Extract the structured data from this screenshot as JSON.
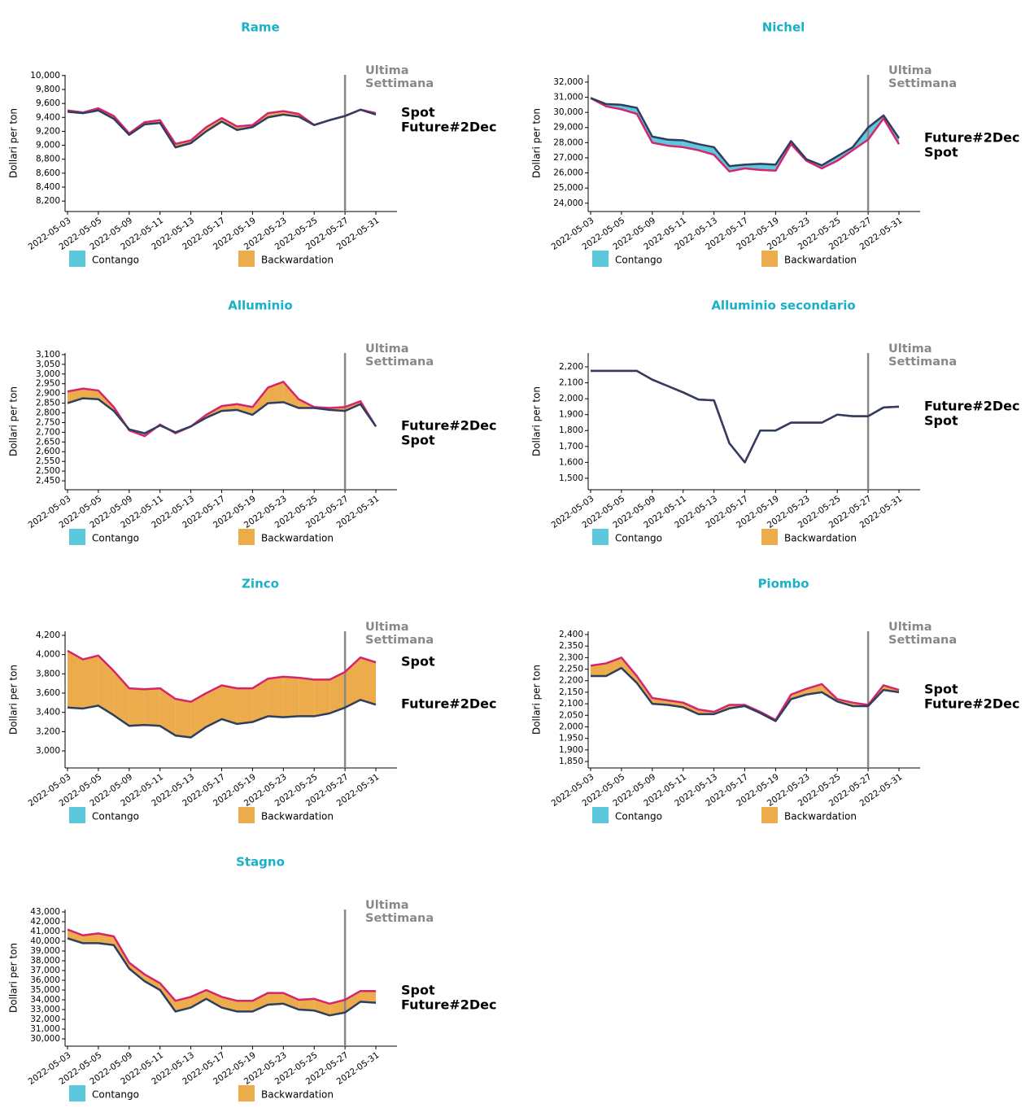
{
  "chart_data": [
    {
      "type": "line",
      "title": "Rame",
      "y_label": "Dollari per ton",
      "categories": [
        "2022-05-03",
        null,
        "2022-05-05",
        null,
        "2022-05-09",
        null,
        "2022-05-11",
        null,
        "2022-05-13",
        null,
        "2022-05-17",
        null,
        "2022-05-19",
        null,
        "2022-05-23",
        null,
        "2022-05-25",
        null,
        "2022-05-27",
        null,
        "2022-05-31"
      ],
      "series": [
        {
          "name": "Spot",
          "color": "#d6246e",
          "values": [
            9500,
            9470,
            9530,
            9420,
            9170,
            9330,
            9360,
            9020,
            9070,
            9260,
            9390,
            9270,
            9290,
            9460,
            9490,
            9450,
            9290,
            9360,
            9420,
            9510,
            9460
          ]
        },
        {
          "name": "Future#2Dec",
          "color": "#2d3e5e",
          "values": [
            9480,
            9460,
            9500,
            9380,
            9150,
            9300,
            9320,
            8970,
            9030,
            9200,
            9340,
            9220,
            9260,
            9400,
            9440,
            9410,
            9290,
            9360,
            9420,
            9510,
            9440
          ]
        }
      ],
      "legend": [
        {
          "name": "Contango",
          "color": "#5bc8dc"
        },
        {
          "name": "Backwardation",
          "color": "#ecac4c"
        }
      ],
      "vline_at": "2022-05-27",
      "annotation": [
        "Ultima",
        "Settimana"
      ],
      "ylim": [
        8050,
        10010
      ],
      "yticks": [
        {
          "value": 8200,
          "label": "8,200"
        },
        {
          "value": 8400,
          "label": "8,400"
        },
        {
          "value": 8600,
          "label": "8,600"
        },
        {
          "value": 8800,
          "label": "8,800"
        },
        {
          "value": 9000,
          "label": "9,000"
        },
        {
          "value": 9200,
          "label": "9,200"
        },
        {
          "value": 9400,
          "label": "9,400"
        },
        {
          "value": 9600,
          "label": "9,600"
        },
        {
          "value": 9800,
          "label": "9,800"
        },
        {
          "value": 10000,
          "label": "10,000"
        }
      ]
    },
    {
      "type": "line",
      "title": "Nichel",
      "y_label": "Dollari per ton",
      "categories": [
        "2022-05-03",
        null,
        "2022-05-05",
        null,
        "2022-05-09",
        null,
        "2022-05-11",
        null,
        "2022-05-13",
        null,
        "2022-05-17",
        null,
        "2022-05-19",
        null,
        "2022-05-23",
        null,
        "2022-05-25",
        null,
        "2022-05-27",
        null,
        "2022-05-31"
      ],
      "series": [
        {
          "name": "Spot",
          "color": "#d6246e",
          "values": [
            30950,
            30400,
            30200,
            29900,
            28000,
            27800,
            27700,
            27500,
            27200,
            26100,
            26300,
            26200,
            26150,
            27900,
            26800,
            26300,
            26800,
            27500,
            28200,
            29600,
            27900
          ]
        },
        {
          "name": "Future#2Dec",
          "color": "#2d3e5e",
          "values": [
            30950,
            30550,
            30500,
            30300,
            28400,
            28200,
            28150,
            27900,
            27700,
            26450,
            26550,
            26600,
            26550,
            28100,
            26900,
            26500,
            27100,
            27700,
            29000,
            29800,
            28300
          ]
        }
      ],
      "legend": [
        {
          "name": "Contango",
          "color": "#5bc8dc"
        },
        {
          "name": "Backwardation",
          "color": "#ecac4c"
        }
      ],
      "vline_at": "2022-05-27",
      "annotation": [
        "Ultima",
        "Settimana"
      ],
      "ylim": [
        23450,
        32480
      ],
      "yticks": [
        {
          "value": 24000,
          "label": "24,000"
        },
        {
          "value": 25000,
          "label": "25,000"
        },
        {
          "value": 26000,
          "label": "26,000"
        },
        {
          "value": 27000,
          "label": "27,000"
        },
        {
          "value": 28000,
          "label": "28,000"
        },
        {
          "value": 29000,
          "label": "29,000"
        },
        {
          "value": 30000,
          "label": "30,000"
        },
        {
          "value": 31000,
          "label": "31,000"
        },
        {
          "value": 32000,
          "label": "32,000"
        }
      ]
    },
    {
      "type": "line",
      "title": "Alluminio",
      "y_label": "Dollari per ton",
      "categories": [
        "2022-05-03",
        null,
        "2022-05-05",
        null,
        "2022-05-09",
        null,
        "2022-05-11",
        null,
        "2022-05-13",
        null,
        "2022-05-17",
        null,
        "2022-05-19",
        null,
        "2022-05-23",
        null,
        "2022-05-25",
        null,
        "2022-05-27",
        null,
        "2022-05-31"
      ],
      "series": [
        {
          "name": "Spot",
          "color": "#d6246e",
          "values": [
            2910,
            2925,
            2915,
            2830,
            2710,
            2680,
            2740,
            2695,
            2730,
            2790,
            2835,
            2845,
            2830,
            2930,
            2960,
            2870,
            2830,
            2825,
            2830,
            2860,
            2730
          ]
        },
        {
          "name": "Future#2Dec",
          "color": "#2d3e5e",
          "values": [
            2850,
            2875,
            2870,
            2810,
            2715,
            2695,
            2735,
            2700,
            2730,
            2775,
            2810,
            2815,
            2790,
            2850,
            2855,
            2825,
            2825,
            2815,
            2810,
            2845,
            2730
          ]
        }
      ],
      "legend": [
        {
          "name": "Contango",
          "color": "#5bc8dc"
        },
        {
          "name": "Backwardation",
          "color": "#ecac4c"
        }
      ],
      "vline_at": "2022-05-27",
      "annotation": [
        "Ultima",
        "Settimana"
      ],
      "ylim": [
        2404,
        3108
      ],
      "yticks": [
        {
          "value": 2450,
          "label": "2,450"
        },
        {
          "value": 2500,
          "label": "2,500"
        },
        {
          "value": 2550,
          "label": "2,550"
        },
        {
          "value": 2600,
          "label": "2,600"
        },
        {
          "value": 2650,
          "label": "2,650"
        },
        {
          "value": 2700,
          "label": "2,700"
        },
        {
          "value": 2750,
          "label": "2,750"
        },
        {
          "value": 2800,
          "label": "2,800"
        },
        {
          "value": 2850,
          "label": "2,850"
        },
        {
          "value": 2900,
          "label": "2,900"
        },
        {
          "value": 2950,
          "label": "2,950"
        },
        {
          "value": 3000,
          "label": "3,000"
        },
        {
          "value": 3050,
          "label": "3,050"
        },
        {
          "value": 3100,
          "label": "3,100"
        }
      ]
    },
    {
      "type": "line",
      "title": "Alluminio secondario",
      "y_label": "Dollari per ton",
      "categories": [
        "2022-05-03",
        null,
        "2022-05-05",
        null,
        "2022-05-09",
        null,
        "2022-05-11",
        null,
        "2022-05-13",
        null,
        "2022-05-17",
        null,
        "2022-05-19",
        null,
        "2022-05-23",
        null,
        "2022-05-25",
        null,
        "2022-05-27",
        null,
        "2022-05-31"
      ],
      "series": [
        {
          "name": "Spot",
          "color": "#d6246e",
          "values": [
            2175,
            2175,
            2175,
            2175,
            2120,
            2080,
            2040,
            1995,
            1990,
            1720,
            1600,
            1800,
            1800,
            1850,
            1850,
            1850,
            1900,
            1890,
            1890,
            1945,
            1950
          ]
        },
        {
          "name": "Future#2Dec",
          "color": "#2d3e5e",
          "values": [
            2175,
            2175,
            2175,
            2175,
            2120,
            2080,
            2040,
            1995,
            1990,
            1720,
            1600,
            1800,
            1800,
            1850,
            1850,
            1850,
            1900,
            1890,
            1890,
            1945,
            1950
          ]
        }
      ],
      "legend": [
        {
          "name": "Contango",
          "color": "#5bc8dc"
        },
        {
          "name": "Backwardation",
          "color": "#ecac4c"
        }
      ],
      "vline_at": "2022-05-27",
      "annotation": [
        "Ultima",
        "Settimana"
      ],
      "ylim": [
        1428,
        2287
      ],
      "yticks": [
        {
          "value": 1500,
          "label": "1,500"
        },
        {
          "value": 1600,
          "label": "1,600"
        },
        {
          "value": 1700,
          "label": "1,700"
        },
        {
          "value": 1800,
          "label": "1,800"
        },
        {
          "value": 1900,
          "label": "1,900"
        },
        {
          "value": 2000,
          "label": "2,000"
        },
        {
          "value": 2100,
          "label": "2,100"
        },
        {
          "value": 2200,
          "label": "2,200"
        }
      ]
    },
    {
      "type": "line",
      "title": "Zinco",
      "y_label": "Dollari per ton",
      "categories": [
        "2022-05-03",
        null,
        "2022-05-05",
        null,
        "2022-05-09",
        null,
        "2022-05-11",
        null,
        "2022-05-13",
        null,
        "2022-05-17",
        null,
        "2022-05-19",
        null,
        "2022-05-23",
        null,
        "2022-05-25",
        null,
        "2022-05-27",
        null,
        "2022-05-31"
      ],
      "series": [
        {
          "name": "Spot",
          "color": "#d6246e",
          "values": [
            4040,
            3950,
            3990,
            3830,
            3650,
            3640,
            3650,
            3540,
            3510,
            3600,
            3680,
            3650,
            3650,
            3750,
            3770,
            3760,
            3740,
            3740,
            3820,
            3970,
            3920
          ]
        },
        {
          "name": "Future#2Dec",
          "color": "#2d3e5e",
          "values": [
            3450,
            3440,
            3470,
            3370,
            3260,
            3270,
            3260,
            3160,
            3140,
            3250,
            3330,
            3280,
            3300,
            3360,
            3350,
            3360,
            3360,
            3390,
            3450,
            3530,
            3480
          ]
        }
      ],
      "legend": [
        {
          "name": "Contango",
          "color": "#5bc8dc"
        },
        {
          "name": "Backwardation",
          "color": "#ecac4c"
        }
      ],
      "vline_at": "2022-05-27",
      "annotation": [
        "Ultima",
        "Settimana"
      ],
      "ylim": [
        2823,
        4242
      ],
      "yticks": [
        {
          "value": 3000,
          "label": "3,000"
        },
        {
          "value": 3200,
          "label": "3,200"
        },
        {
          "value": 3400,
          "label": "3,400"
        },
        {
          "value": 3600,
          "label": "3,600"
        },
        {
          "value": 3800,
          "label": "3,800"
        },
        {
          "value": 4000,
          "label": "4,000"
        },
        {
          "value": 4200,
          "label": "4,200"
        }
      ]
    },
    {
      "type": "line",
      "title": "Piombo",
      "y_label": "Dollari per ton",
      "categories": [
        "2022-05-03",
        null,
        "2022-05-05",
        null,
        "2022-05-09",
        null,
        "2022-05-11",
        null,
        "2022-05-13",
        null,
        "2022-05-17",
        null,
        "2022-05-19",
        null,
        "2022-05-23",
        null,
        "2022-05-25",
        null,
        "2022-05-27",
        null,
        "2022-05-31"
      ],
      "series": [
        {
          "name": "Spot",
          "color": "#d6246e",
          "values": [
            2265,
            2275,
            2300,
            2220,
            2125,
            2115,
            2105,
            2075,
            2065,
            2095,
            2095,
            2065,
            2030,
            2140,
            2165,
            2185,
            2120,
            2105,
            2095,
            2180,
            2160
          ]
        },
        {
          "name": "Future#2Dec",
          "color": "#2d3e5e",
          "values": [
            2220,
            2220,
            2255,
            2190,
            2100,
            2095,
            2085,
            2055,
            2055,
            2080,
            2090,
            2060,
            2025,
            2120,
            2140,
            2150,
            2110,
            2090,
            2090,
            2160,
            2150
          ]
        }
      ],
      "legend": [
        {
          "name": "Contango",
          "color": "#5bc8dc"
        },
        {
          "name": "Backwardation",
          "color": "#ecac4c"
        }
      ],
      "vline_at": "2022-05-27",
      "annotation": [
        "Ultima",
        "Settimana"
      ],
      "ylim": [
        1822,
        2414
      ],
      "yticks": [
        {
          "value": 1850,
          "label": "1,850"
        },
        {
          "value": 1900,
          "label": "1,900"
        },
        {
          "value": 1950,
          "label": "1,950"
        },
        {
          "value": 2000,
          "label": "2,000"
        },
        {
          "value": 2050,
          "label": "2,050"
        },
        {
          "value": 2100,
          "label": "2,100"
        },
        {
          "value": 2150,
          "label": "2,150"
        },
        {
          "value": 2200,
          "label": "2,200"
        },
        {
          "value": 2250,
          "label": "2,250"
        },
        {
          "value": 2300,
          "label": "2,300"
        },
        {
          "value": 2350,
          "label": "2,350"
        },
        {
          "value": 2400,
          "label": "2,400"
        }
      ]
    },
    {
      "type": "line",
      "title": "Stagno",
      "y_label": "Dollari per ton",
      "categories": [
        "2022-05-03",
        null,
        "2022-05-05",
        null,
        "2022-05-09",
        null,
        "2022-05-11",
        null,
        "2022-05-13",
        null,
        "2022-05-17",
        null,
        "2022-05-19",
        null,
        "2022-05-23",
        null,
        "2022-05-25",
        null,
        "2022-05-27",
        null,
        "2022-05-31"
      ],
      "series": [
        {
          "name": "Spot",
          "color": "#d6246e",
          "values": [
            41200,
            40600,
            40800,
            40500,
            37800,
            36600,
            35700,
            33900,
            34300,
            35000,
            34300,
            33900,
            33900,
            34700,
            34700,
            34000,
            34100,
            33600,
            34000,
            34900,
            34900
          ]
        },
        {
          "name": "Future#2Dec",
          "color": "#2d3e5e",
          "values": [
            40300,
            39800,
            39800,
            39600,
            37200,
            35900,
            35000,
            32800,
            33200,
            34100,
            33200,
            32800,
            32800,
            33500,
            33600,
            33000,
            32900,
            32400,
            32700,
            33800,
            33700
          ]
        }
      ],
      "legend": [
        {
          "name": "Contango",
          "color": "#5bc8dc"
        },
        {
          "name": "Backwardation",
          "color": "#ecac4c"
        }
      ],
      "vline_at": "2022-05-27",
      "annotation": [
        "Ultima",
        "Settimana"
      ],
      "ylim": [
        29250,
        43250
      ],
      "yticks": [
        {
          "value": 30000,
          "label": "30,000"
        },
        {
          "value": 31000,
          "label": "31,000"
        },
        {
          "value": 32000,
          "label": "32,000"
        },
        {
          "value": 33000,
          "label": "33,000"
        },
        {
          "value": 34000,
          "label": "34,000"
        },
        {
          "value": 35000,
          "label": "35,000"
        },
        {
          "value": 36000,
          "label": "36,000"
        },
        {
          "value": 37000,
          "label": "37,000"
        },
        {
          "value": 38000,
          "label": "38,000"
        },
        {
          "value": 39000,
          "label": "39,000"
        },
        {
          "value": 40000,
          "label": "40,000"
        },
        {
          "value": 41000,
          "label": "41,000"
        },
        {
          "value": 42000,
          "label": "42,000"
        },
        {
          "value": 43000,
          "label": "43,000"
        }
      ]
    }
  ]
}
